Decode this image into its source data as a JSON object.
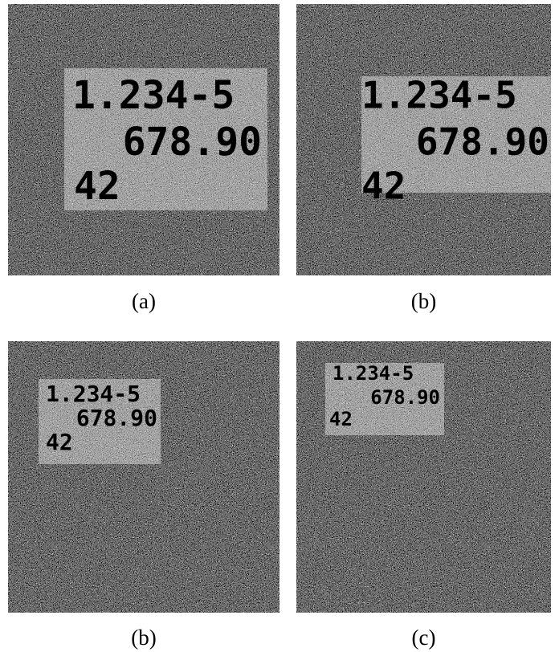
{
  "panels": [
    {
      "caption": "(a)",
      "lines": [
        "1.234-5",
        "678.90",
        "42"
      ]
    },
    {
      "caption": "(b)",
      "lines": [
        "1.234-5",
        "678.90",
        "42"
      ]
    },
    {
      "caption": "(b)",
      "lines": [
        "1.234-5",
        "678.90",
        "42"
      ]
    },
    {
      "caption": "(c)",
      "lines": [
        "1.234-5",
        "678.90",
        "42"
      ]
    }
  ]
}
